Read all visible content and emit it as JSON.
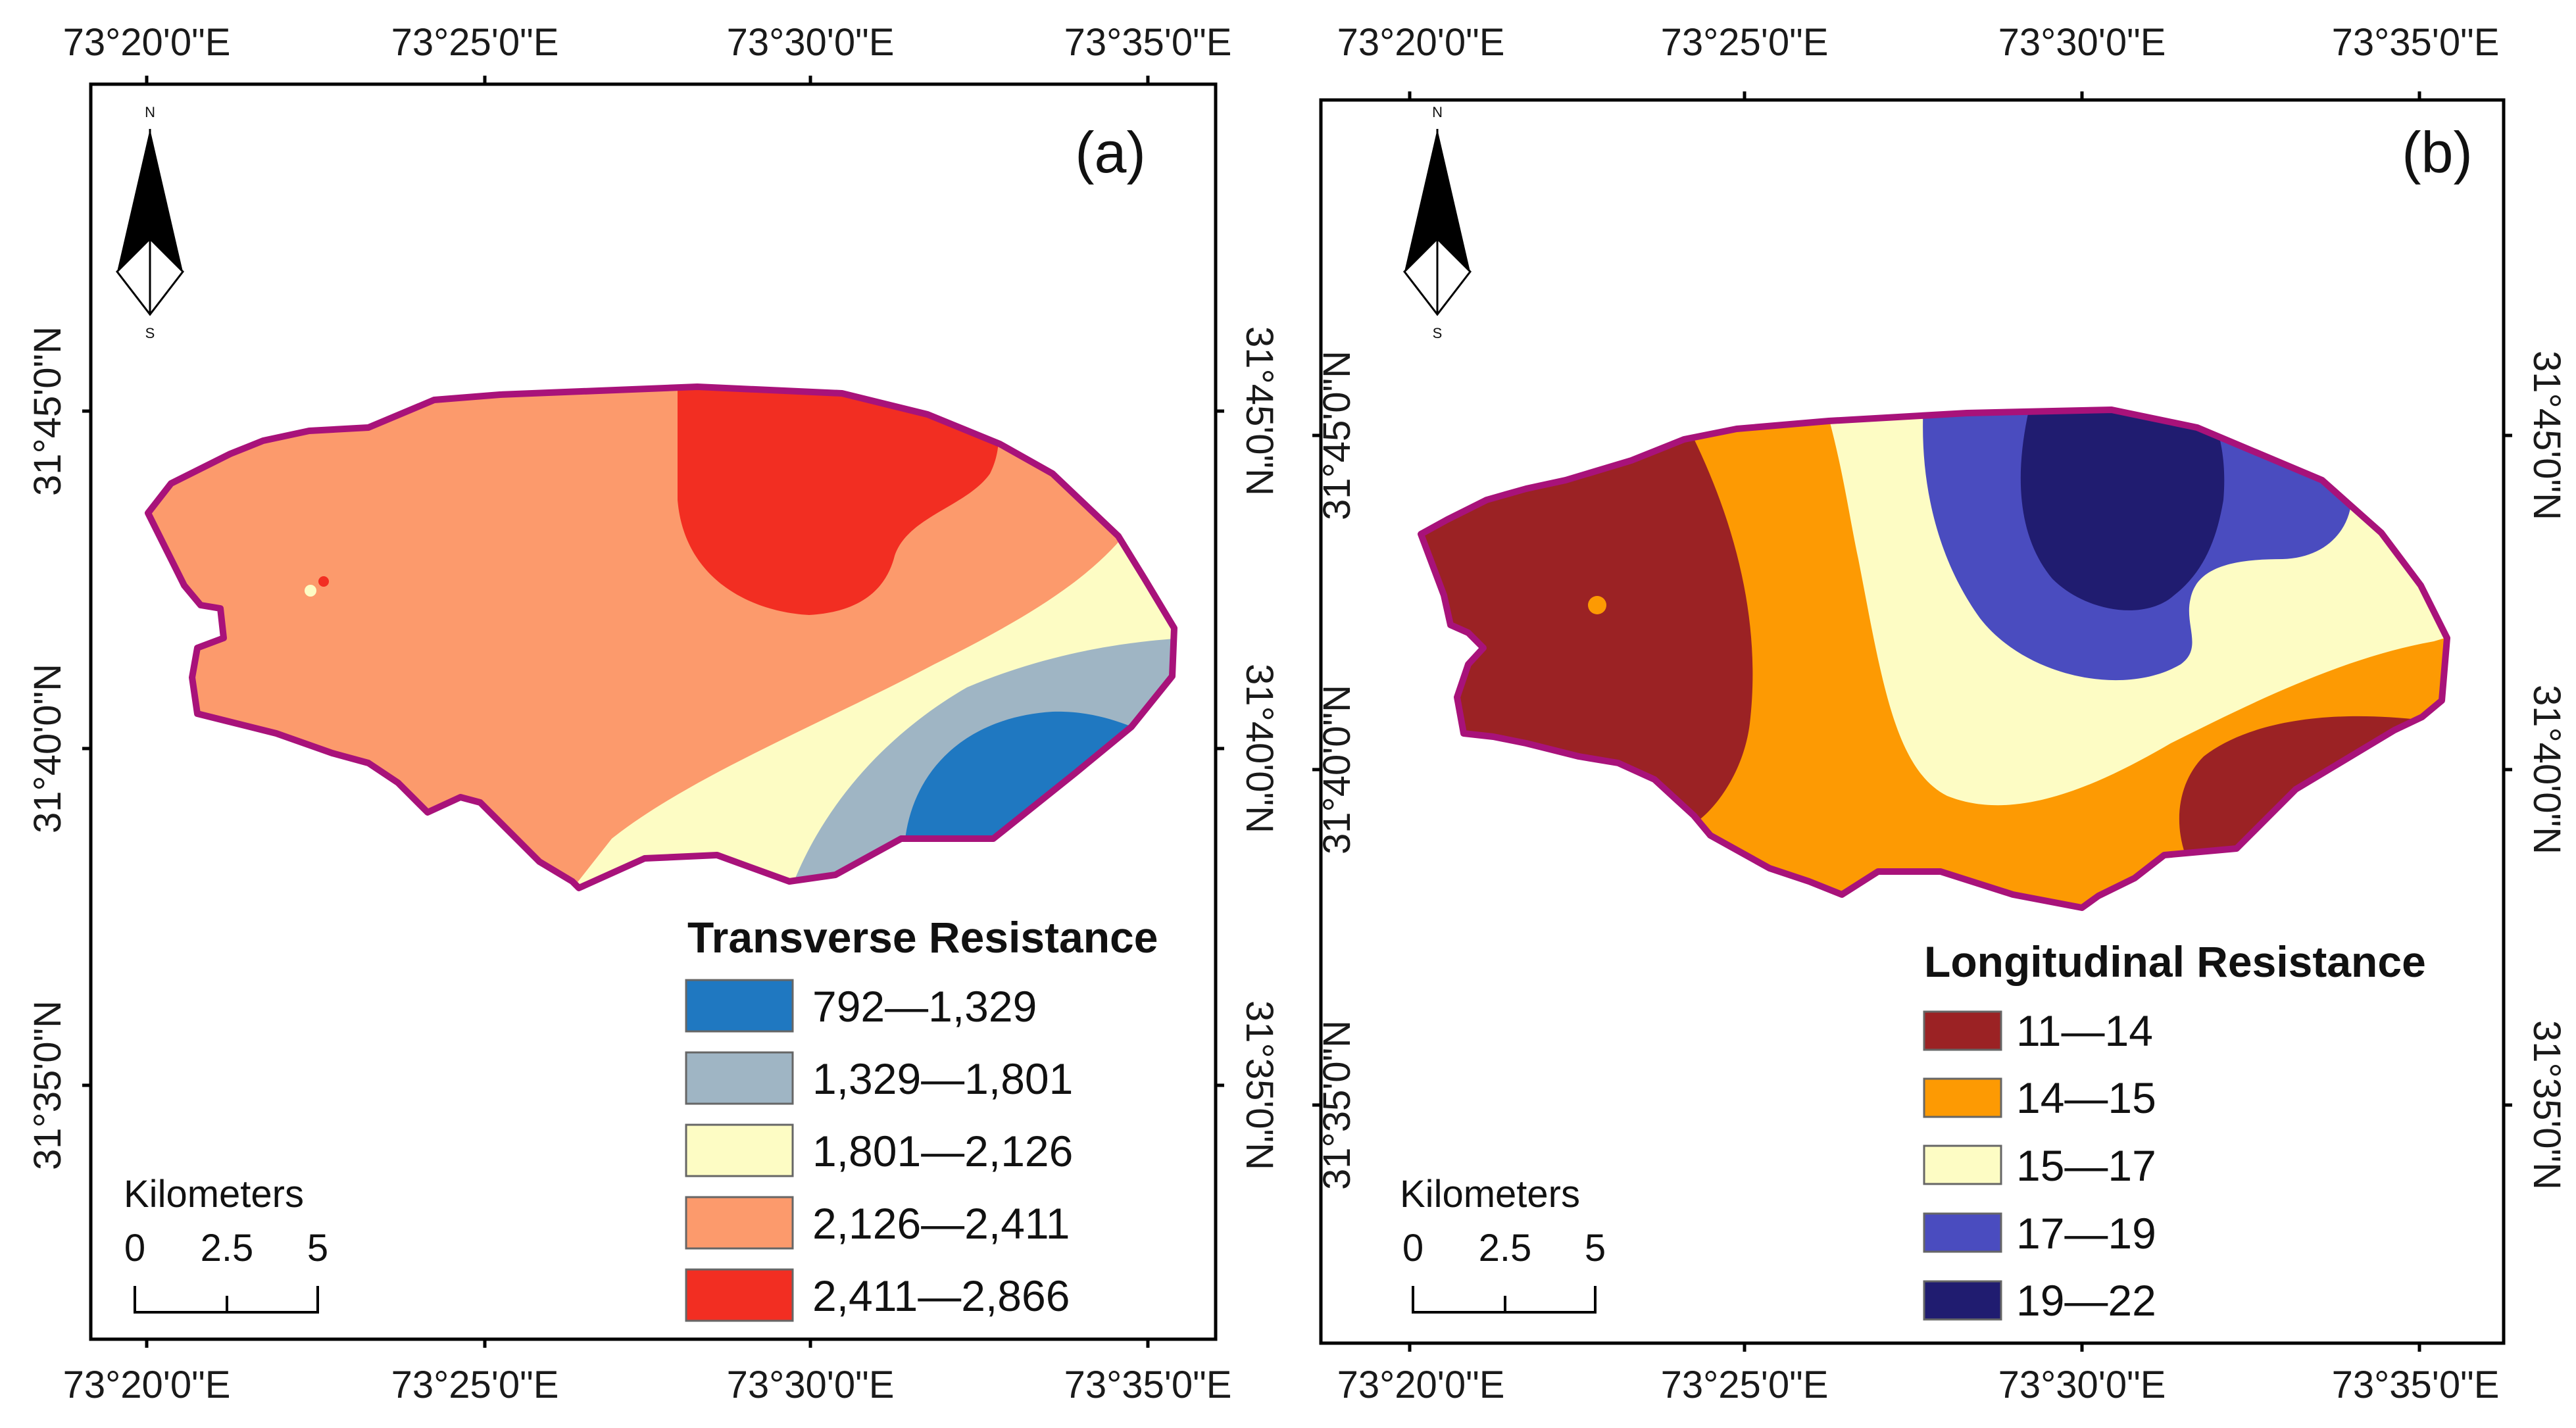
{
  "panels": [
    {
      "id": "a",
      "label": "(a)",
      "x_ticks": [
        "73°20'0\"E",
        "73°25'0\"E",
        "73°30'0\"E",
        "73°35'0\"E"
      ],
      "y_ticks": [
        "31°45'0\"N",
        "31°40'0\"N",
        "31°35'0\"N"
      ],
      "legend": {
        "title": "Transverse Resistance",
        "items": [
          {
            "label": "792—1,329",
            "color": "#1f78c1"
          },
          {
            "label": "1,329—1,801",
            "color": "#9fb5c4"
          },
          {
            "label": "1,801—2,126",
            "color": "#fdfcc4"
          },
          {
            "label": "2,126—2,411",
            "color": "#fc9a6c"
          },
          {
            "label": "2,411—2,866",
            "color": "#f22e22"
          }
        ]
      },
      "scale": {
        "title": "Kilometers",
        "ticks": [
          "0",
          "2.5",
          "5"
        ]
      },
      "north": {
        "n": "N",
        "s": "S",
        "icon": "north-arrow-icon"
      },
      "boundary_color": "#a8127a"
    },
    {
      "id": "b",
      "label": "(b)",
      "x_ticks": [
        "73°20'0\"E",
        "73°25'0\"E",
        "73°30'0\"E",
        "73°35'0\"E"
      ],
      "y_ticks": [
        "31°45'0\"N",
        "31°40'0\"N",
        "31°35'0\"N"
      ],
      "legend": {
        "title": "Longitudinal Resistance",
        "items": [
          {
            "label": "11—14",
            "color": "#9b2224"
          },
          {
            "label": "14—15",
            "color": "#fd9a03"
          },
          {
            "label": "15—17",
            "color": "#fdfcc4"
          },
          {
            "label": "17—19",
            "color": "#4a4cbf"
          },
          {
            "label": "19—22",
            "color": "#201c70"
          }
        ]
      },
      "scale": {
        "title": "Kilometers",
        "ticks": [
          "0",
          "2.5",
          "5"
        ]
      },
      "north": {
        "n": "N",
        "s": "S",
        "icon": "north-arrow-icon"
      },
      "boundary_color": "#a8127a"
    }
  ]
}
